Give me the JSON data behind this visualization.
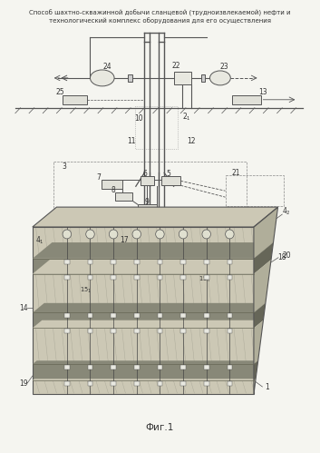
{
  "title_line1": "Способ шахтно-скважинной добычи сланцевой (труднoизвлекаемой) нефти и",
  "title_line2": "технологический комплекс оборудования для его осуществления",
  "fig_label": "Фиг.1",
  "bg_color": "#f5f5f0",
  "line_color": "#555555"
}
